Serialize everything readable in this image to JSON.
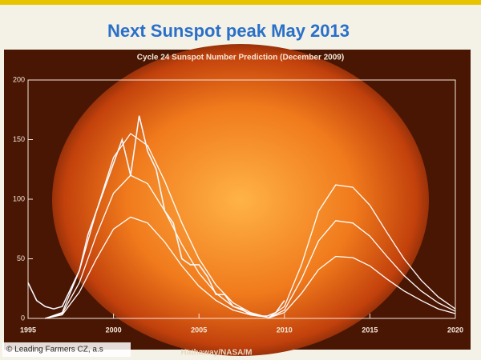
{
  "slide_title": "Next Sunspot peak May 2013",
  "watermark": "© Leading Farmers CZ, a.s",
  "chart_data": {
    "type": "line",
    "title": "Cycle 24 Sunspot Number Prediction (December 2009)",
    "credit": "Hathaway/NASA/M",
    "xlim": [
      1995,
      2020
    ],
    "xticks": [
      1995,
      2000,
      2005,
      2010,
      2015,
      2020
    ],
    "ylim": [
      0,
      200
    ],
    "yticks": [
      0,
      50,
      100,
      150,
      200
    ],
    "series": [
      {
        "color": "#f4f8ff",
        "x": [
          1995,
          1995.5,
          1996,
          1996.5,
          1997,
          1997.5,
          1998,
          1998.5,
          1999,
          1999.5,
          2000,
          2000.5,
          2001,
          2001.5,
          2002,
          2002.5,
          2003,
          2003.5,
          2004,
          2004.5,
          2005,
          2005.5,
          2006,
          2006.5,
          2007,
          2007.5,
          2008,
          2008.5,
          2009,
          2009.5,
          2010
        ],
        "values": [
          30,
          15,
          10,
          8,
          10,
          25,
          40,
          70,
          90,
          110,
          130,
          150,
          120,
          170,
          140,
          125,
          90,
          80,
          50,
          45,
          45,
          35,
          20,
          20,
          10,
          8,
          3,
          2,
          2,
          5,
          15
        ]
      },
      {
        "color": "#ffffff",
        "x": [
          1996,
          1997,
          1998,
          1999,
          2000,
          2001,
          2002,
          2003,
          2004,
          2005,
          2006,
          2007,
          2008,
          2009
        ],
        "values": [
          0,
          5,
          40,
          90,
          135,
          155,
          145,
          115,
          80,
          50,
          28,
          13,
          5,
          1
        ]
      },
      {
        "color": "#ffffff",
        "x": [
          1996,
          1997,
          1998,
          1999,
          2000,
          2001,
          2002,
          2003,
          2004,
          2005,
          2006,
          2007,
          2008,
          2009
        ],
        "values": [
          0,
          4,
          30,
          70,
          105,
          120,
          113,
          90,
          62,
          38,
          21,
          10,
          4,
          1
        ]
      },
      {
        "color": "#ffffff",
        "x": [
          1996,
          1997,
          1998,
          1999,
          2000,
          2001,
          2002,
          2003,
          2004,
          2005,
          2006,
          2007,
          2008,
          2009
        ],
        "values": [
          0,
          3,
          22,
          50,
          75,
          85,
          80,
          64,
          44,
          27,
          15,
          7,
          3,
          1
        ]
      },
      {
        "color": "#ffffff",
        "x": [
          2009,
          2010,
          2011,
          2012,
          2013,
          2014,
          2015,
          2016,
          2017,
          2018,
          2019,
          2020
        ],
        "values": [
          0,
          10,
          45,
          90,
          112,
          110,
          95,
          72,
          50,
          32,
          18,
          8
        ]
      },
      {
        "color": "#ffffff",
        "x": [
          2009,
          2010,
          2011,
          2012,
          2013,
          2014,
          2015,
          2016,
          2017,
          2018,
          2019,
          2020
        ],
        "values": [
          0,
          7,
          33,
          65,
          82,
          80,
          69,
          52,
          36,
          23,
          13,
          6
        ]
      },
      {
        "color": "#ffffff",
        "x": [
          2009,
          2010,
          2011,
          2012,
          2013,
          2014,
          2015,
          2016,
          2017,
          2018,
          2019,
          2020
        ],
        "values": [
          0,
          5,
          21,
          41,
          52,
          51,
          44,
          33,
          23,
          15,
          8,
          4
        ]
      }
    ]
  }
}
